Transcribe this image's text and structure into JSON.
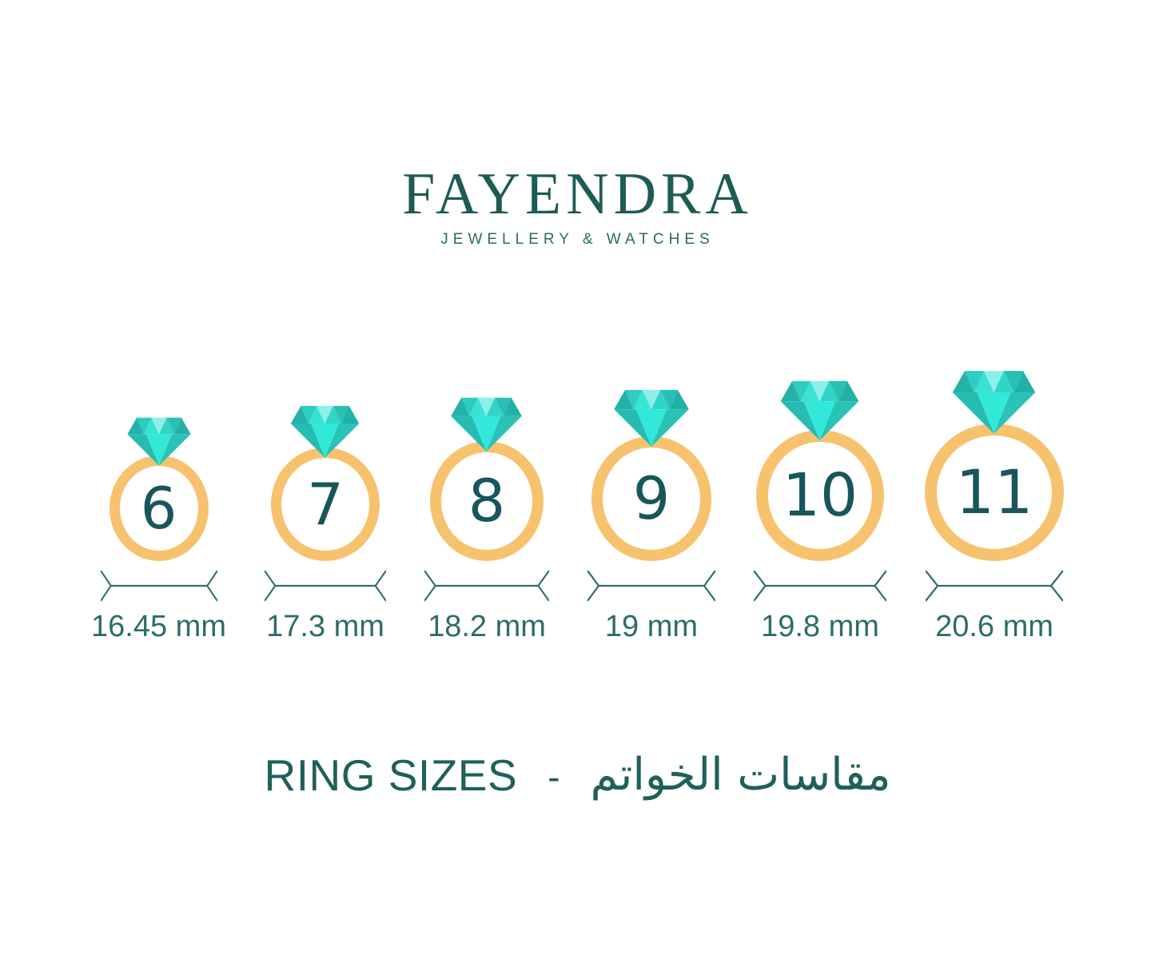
{
  "page": {
    "background": "#ffffff"
  },
  "brand": {
    "name": "FAYENDRA",
    "tagline": "JEWELLERY & WATCHES"
  },
  "rings": [
    {
      "size": "6",
      "diameter": "16.45 mm"
    },
    {
      "size": "7",
      "diameter": "17.3 mm"
    },
    {
      "size": "8",
      "diameter": "18.2 mm"
    },
    {
      "size": "9",
      "diameter": "19 mm"
    },
    {
      "size": "10",
      "diameter": "19.8 mm"
    },
    {
      "size": "11",
      "diameter": "20.6 mm"
    }
  ],
  "footer": {
    "title_en": "RING SIZES",
    "separator": "-",
    "title_ar": "مقاسات الخواتم"
  },
  "colors": {
    "brand_teal": "#1d5c55",
    "title_teal": "#1e605a",
    "number_teal": "#17565b",
    "measure_text_teal": "#2c6d68",
    "arrow_teal": "#2f6f6b",
    "band_gold": "#f7c26e",
    "diamond_bright": "#31e8d9",
    "diamond_pale": "#8df0e8",
    "diamond_dark": "#23b2a8"
  }
}
